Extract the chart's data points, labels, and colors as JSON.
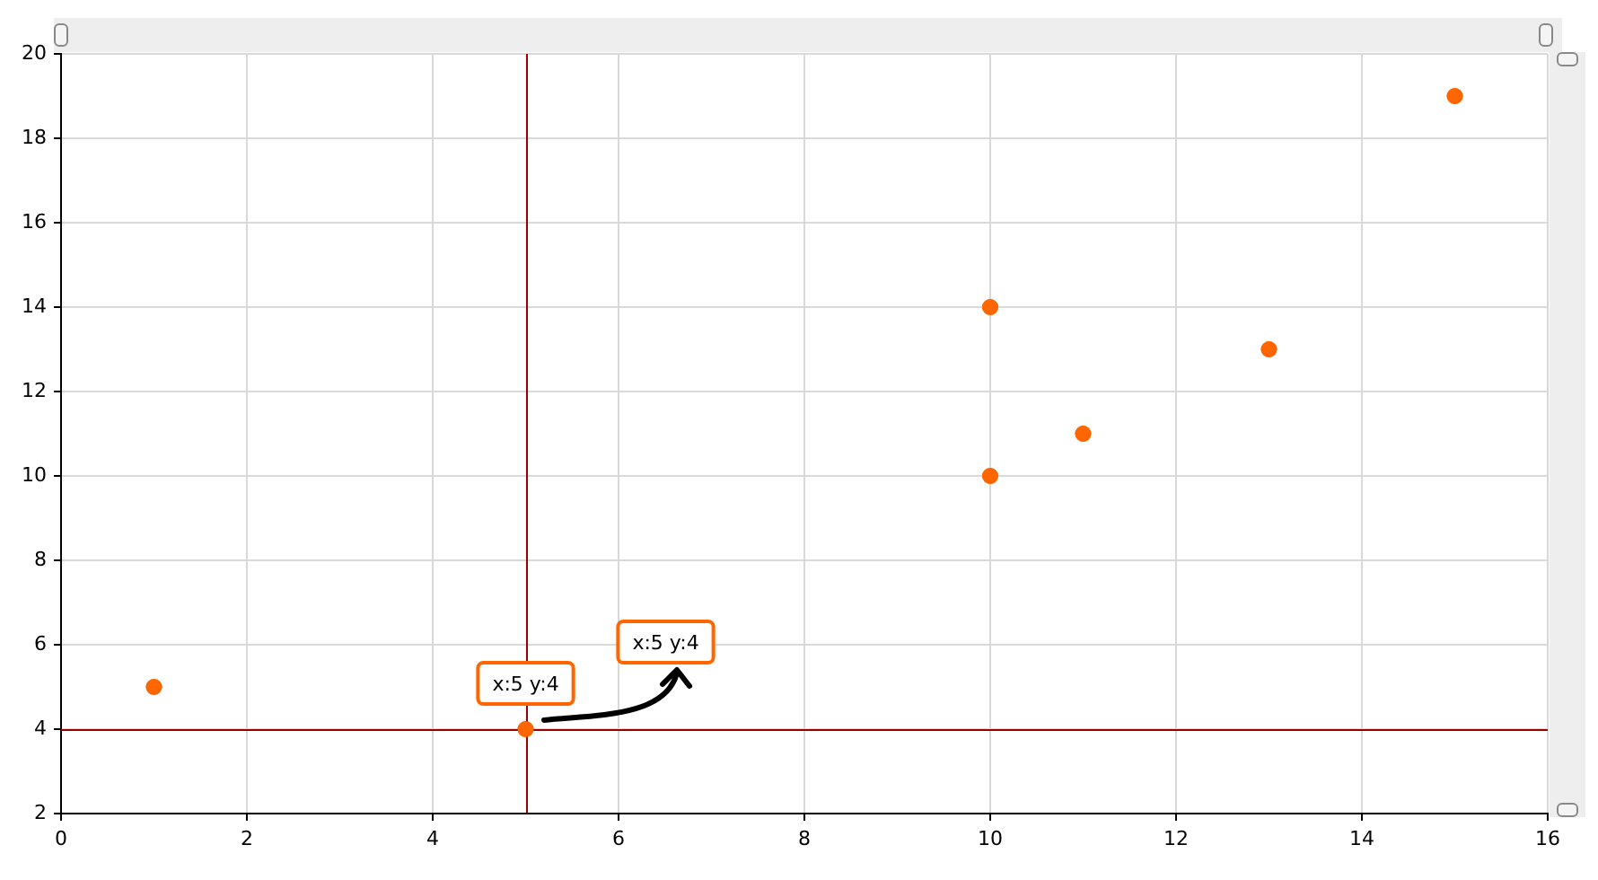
{
  "chart_data": {
    "type": "scatter",
    "x": [
      1,
      5,
      10,
      10,
      11,
      13,
      15
    ],
    "values": [
      5,
      4,
      14,
      10,
      11,
      13,
      19
    ],
    "color": "#ff6600",
    "marker": "circle",
    "xlim": [
      0,
      16
    ],
    "xticks": [
      0,
      2,
      4,
      6,
      8,
      10,
      12,
      14,
      16
    ],
    "ylim": [
      2,
      20
    ],
    "yticks": [
      2,
      4,
      6,
      8,
      10,
      12,
      14,
      16,
      18,
      20
    ],
    "grid": true,
    "legend": false,
    "ref_lines": [
      {
        "axis": "x",
        "value": 5,
        "color": "#990000"
      },
      {
        "axis": "y",
        "value": 4,
        "color": "#990000"
      }
    ],
    "annotations": [
      {
        "text": "x:5 y:4",
        "x": 5,
        "y": 4
      },
      "x:5 y:4"
    ]
  }
}
